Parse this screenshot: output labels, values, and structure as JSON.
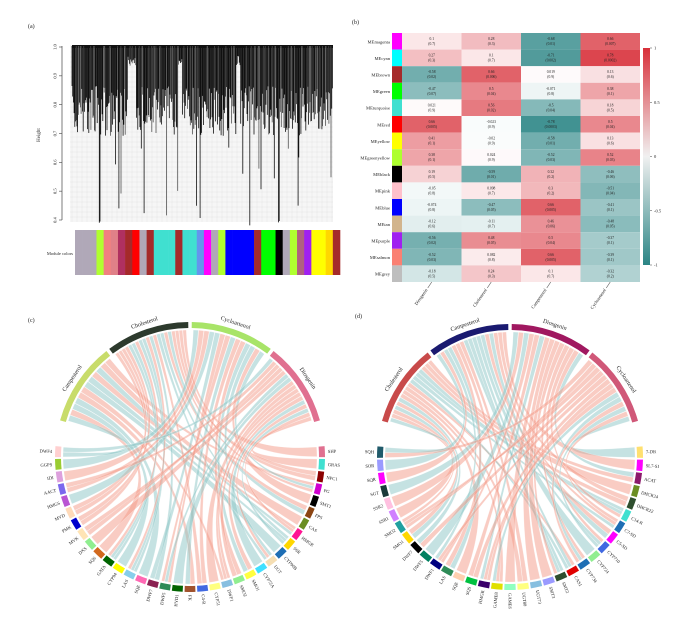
{
  "panels": {
    "a": {
      "label": "(a)",
      "ylabel": "Height",
      "yticks": [
        "1.0",
        "0.9",
        "0.8",
        "0.7",
        "0.6",
        "0.5",
        "0.4"
      ],
      "colorbar_label": "Module colors",
      "module_colors": [
        "#b0a8b8",
        "#b0a8b8",
        "#b0a8b8",
        "#b0ff30",
        "#f08080",
        "#e08088",
        "#b03060",
        "#a52a2a",
        "#ff0000",
        "#b0a8b8",
        "#a52a2a",
        "#40e0d0",
        "#40e0d0",
        "#40e0d0",
        "#a52a2a",
        "#40e0d0",
        "#40e0d0",
        "#6495ed",
        "#ff00ff",
        "#b0a8b8",
        "#b0ff30",
        "#0000ff",
        "#0000ff",
        "#0000ff",
        "#0000ff",
        "#a52a2a",
        "#00ff00",
        "#00ff00",
        "#000000",
        "#b0a8b8",
        "#b0ff30",
        "#b06080",
        "#a020f0",
        "#ffff00",
        "#ffff00",
        "#ffd700",
        "#a52a2a"
      ]
    },
    "b": {
      "label": "(b)"
    },
    "c": {
      "label": "(c)"
    },
    "d": {
      "label": "(d)"
    }
  },
  "chart_data": [
    {
      "type": "heatmap",
      "panel": "b",
      "rows": [
        "MEmagenta",
        "MEcyan",
        "MEbrown",
        "MEgreen",
        "MEturquoise",
        "MEred",
        "MEyellow",
        "MEgreenyellow",
        "MEblack",
        "MEpink",
        "MEblue",
        "MEtan",
        "MEpurple",
        "MEsalmon",
        "MEgrey"
      ],
      "row_colors": [
        "#ff00ff",
        "#00ffff",
        "#a52a2a",
        "#00ff00",
        "#40e0d0",
        "#ff0000",
        "#ffff00",
        "#adff2f",
        "#000000",
        "#ffc0cb",
        "#0000ff",
        "#d2b48c",
        "#a020f0",
        "#fa8072",
        "#bebebe"
      ],
      "columns": [
        "Diosgenin",
        "Cholesterol",
        "Campesterol",
        "Cycloartenol"
      ],
      "values": [
        [
          0.1,
          0.28,
          -0.68,
          0.66
        ],
        [
          0.27,
          0.1,
          -0.71,
          0.78
        ],
        [
          -0.58,
          0.66,
          0.019,
          0.13
        ],
        [
          -0.47,
          0.5,
          -0.071,
          0.38
        ],
        [
          0.021,
          0.56,
          -0.5,
          0.18
        ],
        [
          0.66,
          -0.023,
          -0.78,
          0.5
        ],
        [
          0.41,
          -0.02,
          -0.58,
          0.13
        ],
        [
          0.38,
          0.024,
          -0.52,
          0.52
        ],
        [
          0.19,
          -0.59,
          0.32,
          -0.46
        ],
        [
          -0.05,
          0.098,
          0.3,
          -0.51
        ],
        [
          -0.074,
          -0.47,
          0.66,
          -0.41
        ],
        [
          -0.12,
          -0.11,
          0.46,
          -0.48
        ],
        [
          -0.56,
          0.48,
          0.5,
          -0.37
        ],
        [
          -0.52,
          0.082,
          0.66,
          -0.39
        ],
        [
          -0.18,
          0.24,
          0.1,
          -0.32
        ]
      ],
      "pvalues": [
        [
          "(0.7)",
          "(0.3)",
          "(0.01)",
          "(0.007)"
        ],
        [
          "(0.3)",
          "(0.7)",
          "(0.002)",
          "(0.0002)"
        ],
        [
          "(0.02)",
          "(0.006)",
          "(0.9)",
          "(0.6)"
        ],
        [
          "(0.07)",
          "(0.04)",
          "(0.8)",
          "(0.1)"
        ],
        [
          "(0.9)",
          "(0.02)",
          "(0.04)",
          "(0.5)"
        ],
        [
          "(0.005)",
          "(0.9)",
          "(0.0003)",
          "(0.04)"
        ],
        [
          "(0.1)",
          "(0.9)",
          "(0.01)",
          "(0.6)"
        ],
        [
          "(0.1)",
          "(0.9)",
          "(0.03)",
          "(0.03)"
        ],
        [
          "(0.5)",
          "(0.01)",
          "(0.2)",
          "(0.06)"
        ],
        [
          "(0.8)",
          "(0.7)",
          "(0.2)",
          "(0.04)"
        ],
        [
          "(0.8)",
          "(0.05)",
          "(0.005)",
          "(0.1)"
        ],
        [
          "(0.6)",
          "(0.7)",
          "(0.06)",
          "(0.05)"
        ],
        [
          "(0.02)",
          "(0.05)",
          "(0.04)",
          "(0.1)"
        ],
        [
          "(0.03)",
          "(0.8)",
          "(0.005)",
          "(0.1)"
        ],
        [
          "(0.5)",
          "(0.3)",
          "(0.7)",
          "(0.2)"
        ]
      ],
      "range": [
        -1,
        1
      ],
      "legend_ticks": [
        "1",
        "0.5",
        "0",
        "-0.5",
        "-1"
      ],
      "colors": {
        "low": "#2b8585",
        "mid": "#ffffff",
        "high": "#d8303a"
      }
    },
    {
      "type": "chord",
      "panel": "c",
      "traits": [
        {
          "name": "Campesterol",
          "color": "#c8dc6a"
        },
        {
          "name": "Cholesterol",
          "color": "#2d3a2d"
        },
        {
          "name": "Cycloartenol",
          "color": "#a8e468"
        },
        {
          "name": "Diosgenin",
          "color": "#e07090"
        }
      ],
      "genes": [
        {
          "name": "SHP",
          "color": "#e07090"
        },
        {
          "name": "GRAS",
          "color": "#40e0d0"
        },
        {
          "name": "NPC1",
          "color": "#8b0000"
        },
        {
          "name": "PG",
          "color": "#d000d0"
        },
        {
          "name": "SMT1",
          "color": "#000000"
        },
        {
          "name": "FPS",
          "color": "#8b4513"
        },
        {
          "name": "CAS",
          "color": "#6b8e23"
        },
        {
          "name": "HMGR",
          "color": "#ff1493"
        },
        {
          "name": "SSR",
          "color": "#ffd700"
        },
        {
          "name": "CYP90B",
          "color": "#1e6eb4"
        },
        {
          "name": "UGT",
          "color": "#f5deb3"
        },
        {
          "name": "CYP72A",
          "color": "#40e0ff"
        },
        {
          "name": "SMO1",
          "color": "#ffff40"
        },
        {
          "name": "SMO2",
          "color": "#90ee90"
        },
        {
          "name": "DWF1",
          "color": "#87bfe0"
        },
        {
          "name": "CYP51",
          "color": "#ffff80"
        },
        {
          "name": "C4-R",
          "color": "#4169e1"
        },
        {
          "name": "FK",
          "color": "#a0522d"
        },
        {
          "name": "HYD1",
          "color": "#006400"
        },
        {
          "name": "DWF5",
          "color": "#2e8b57"
        },
        {
          "name": "DWF7",
          "color": "#8b2252"
        },
        {
          "name": "SQE",
          "color": "#ff69b4"
        },
        {
          "name": "LAS",
          "color": "#87ceeb"
        },
        {
          "name": "CYP94",
          "color": "#ffff00"
        },
        {
          "name": "GATA",
          "color": "#006400"
        },
        {
          "name": "SQS",
          "color": "#d2691e"
        },
        {
          "name": "DXS",
          "color": "#90ee90"
        },
        {
          "name": "MVK",
          "color": "#ffe4b5"
        },
        {
          "name": "PMK",
          "color": "#0000cd"
        },
        {
          "name": "MVD",
          "color": "#ffdab9"
        },
        {
          "name": "HMGS",
          "color": "#ba55d3"
        },
        {
          "name": "AACT",
          "color": "#7b68ee"
        },
        {
          "name": "IDI",
          "color": "#dda0dd"
        },
        {
          "name": "GGPS",
          "color": "#9acd32"
        },
        {
          "name": "DWF4",
          "color": "#ffd0d0"
        }
      ]
    },
    {
      "type": "chord",
      "panel": "d",
      "traits": [
        {
          "name": "Cholesterol",
          "color": "#c84a4a"
        },
        {
          "name": "Campesterol",
          "color": "#1a1a70"
        },
        {
          "name": "Diosgenin",
          "color": "#a01860"
        },
        {
          "name": "Cycloartenol",
          "color": "#d05878"
        }
      ],
      "genes": [
        {
          "name": "7-DR",
          "color": "#ffe070"
        },
        {
          "name": "SL7-SI",
          "color": "#ff00ff"
        },
        {
          "name": "ACAT",
          "color": "#8b1a6b"
        },
        {
          "name": "DHCR24",
          "color": "#6b8e23"
        },
        {
          "name": "DHCR22",
          "color": "#2f4f2f"
        },
        {
          "name": "C14-R",
          "color": "#40e0d0"
        },
        {
          "name": "C7-SD",
          "color": "#1e6eb4"
        },
        {
          "name": "C5-SD",
          "color": "#ff00ff"
        },
        {
          "name": "CYP710",
          "color": "#4169e1"
        },
        {
          "name": "CYP724",
          "color": "#90ee90"
        },
        {
          "name": "CYP734",
          "color": "#1e6eb4"
        },
        {
          "name": "CAS1",
          "color": "#e00000"
        },
        {
          "name": "SMT2",
          "color": "#2f4f2f"
        },
        {
          "name": "SMT3",
          "color": "#9a9aff"
        },
        {
          "name": "UGT73",
          "color": "#87bfe0"
        },
        {
          "name": "UGT80",
          "color": "#ffff80"
        },
        {
          "name": "GAME6",
          "color": "#90ffc0"
        },
        {
          "name": "GAME8",
          "color": "#e0e000"
        },
        {
          "name": "HMGR",
          "color": "#3a006b"
        },
        {
          "name": "SQS",
          "color": "#00c040"
        },
        {
          "name": "SQE",
          "color": "#ffd0b0"
        },
        {
          "name": "LAS",
          "color": "#2e8b57"
        },
        {
          "name": "DWF1",
          "color": "#000080"
        },
        {
          "name": "DWF5",
          "color": "#008060"
        },
        {
          "name": "DWF7",
          "color": "#000000"
        },
        {
          "name": "SMO1",
          "color": "#ffd700"
        },
        {
          "name": "SMO2",
          "color": "#20a0a0"
        },
        {
          "name": "SSR1",
          "color": "#d080ff"
        },
        {
          "name": "SSR2",
          "color": "#ffc0e0"
        },
        {
          "name": "SGT",
          "color": "#1a3a3a"
        },
        {
          "name": "SQR",
          "color": "#ff00ff"
        },
        {
          "name": "SOR",
          "color": "#9a9aff"
        },
        {
          "name": "SQH",
          "color": "#205a6a"
        }
      ]
    }
  ]
}
